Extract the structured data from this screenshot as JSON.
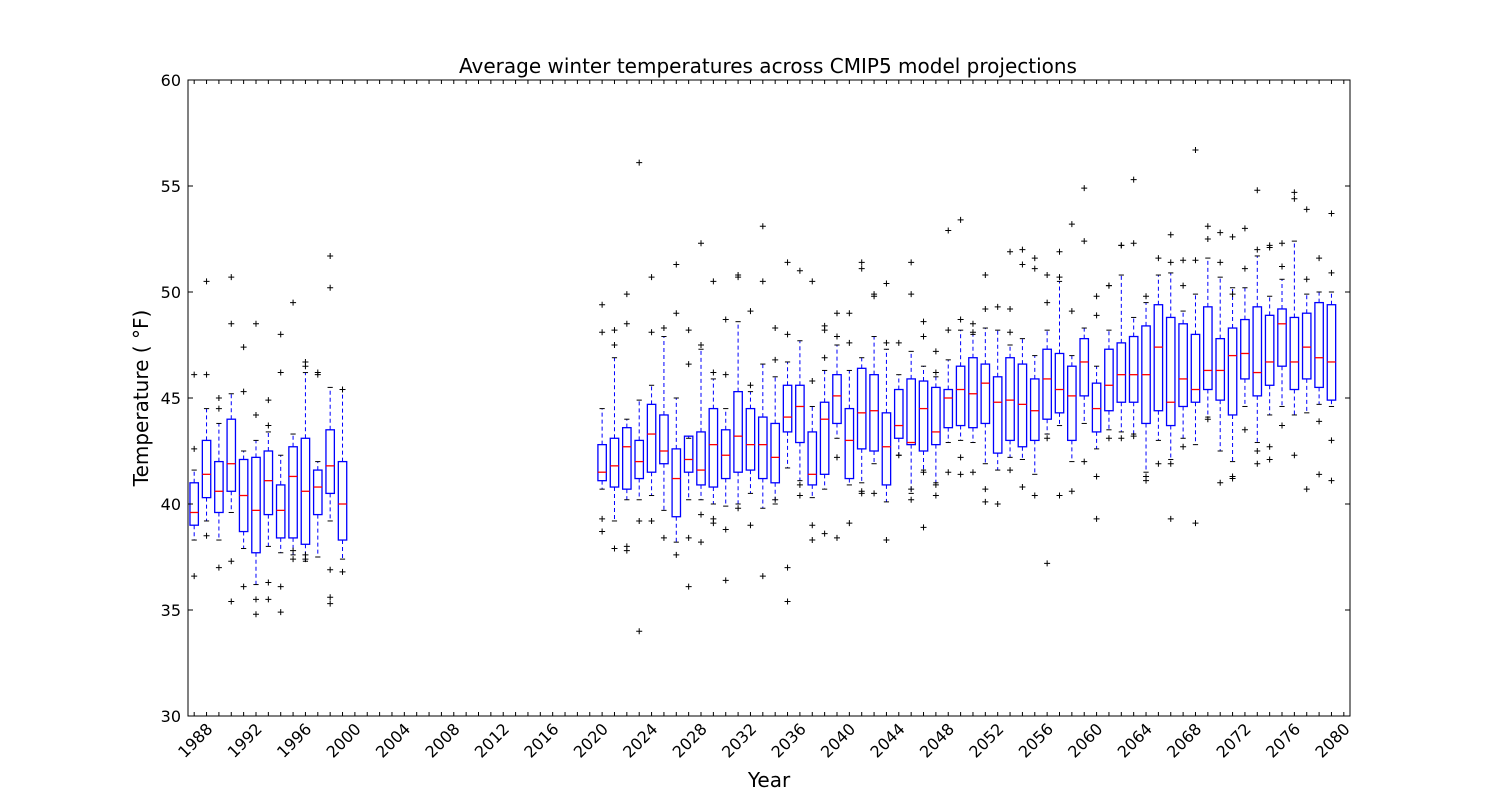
{
  "chart_data": {
    "type": "box",
    "title": "Average winter temperatures across CMIP5 model projections",
    "xlabel": "Year",
    "ylabel": "Temperature ( °F)",
    "ylim": [
      30,
      60
    ],
    "xlim": [
      1986.5,
      2080.5
    ],
    "yticks": [
      30,
      35,
      40,
      45,
      50,
      55,
      60
    ],
    "xticks": [
      1988,
      1992,
      1996,
      2000,
      2004,
      2008,
      2012,
      2016,
      2020,
      2024,
      2028,
      2032,
      2036,
      2040,
      2044,
      2048,
      2052,
      2056,
      2060,
      2064,
      2068,
      2072,
      2076,
      2080
    ],
    "grid": false,
    "colors": {
      "box": "#0000ff",
      "median": "#ff0000",
      "whisker": "#0000ff",
      "flier": "#000000",
      "axes": "#000000"
    },
    "boxes": [
      {
        "year": 1987,
        "q1": 39.0,
        "median": 39.6,
        "q3": 41.0,
        "wlo": 38.3,
        "whi": 41.6,
        "fliers": [
          36.6,
          42.6,
          46.1
        ]
      },
      {
        "year": 1988,
        "q1": 40.3,
        "median": 41.4,
        "q3": 43.0,
        "wlo": 39.2,
        "whi": 44.5,
        "fliers": [
          38.5,
          46.1,
          50.5
        ]
      },
      {
        "year": 1989,
        "q1": 39.6,
        "median": 40.6,
        "q3": 42.0,
        "wlo": 38.3,
        "whi": 43.8,
        "fliers": [
          37.0,
          44.5,
          45.0
        ]
      },
      {
        "year": 1990,
        "q1": 40.6,
        "median": 41.9,
        "q3": 44.0,
        "wlo": 39.6,
        "whi": 45.2,
        "fliers": [
          35.4,
          37.3,
          48.5,
          50.7
        ]
      },
      {
        "year": 1991,
        "q1": 38.7,
        "median": 40.4,
        "q3": 42.1,
        "wlo": 37.9,
        "whi": 42.5,
        "fliers": [
          36.1,
          45.3,
          47.4
        ]
      },
      {
        "year": 1992,
        "q1": 37.7,
        "median": 39.7,
        "q3": 42.2,
        "wlo": 36.2,
        "whi": 43.0,
        "fliers": [
          34.8,
          35.5,
          44.2,
          48.5
        ]
      },
      {
        "year": 1993,
        "q1": 39.5,
        "median": 41.1,
        "q3": 42.5,
        "wlo": 38.0,
        "whi": 43.4,
        "fliers": [
          35.5,
          36.3,
          43.7,
          44.9
        ]
      },
      {
        "year": 1994,
        "q1": 38.4,
        "median": 39.7,
        "q3": 40.9,
        "wlo": 37.7,
        "whi": 42.3,
        "fliers": [
          34.9,
          36.1,
          46.2,
          48.0
        ]
      },
      {
        "year": 1995,
        "q1": 38.4,
        "median": 41.3,
        "q3": 42.7,
        "wlo": 37.6,
        "whi": 43.3,
        "fliers": [
          37.4,
          37.8,
          49.5
        ]
      },
      {
        "year": 1996,
        "q1": 38.1,
        "median": 40.6,
        "q3": 43.1,
        "wlo": 37.3,
        "whi": 46.2,
        "fliers": [
          37.4,
          37.6,
          46.5,
          46.7
        ]
      },
      {
        "year": 1997,
        "q1": 39.5,
        "median": 40.8,
        "q3": 41.6,
        "wlo": 37.5,
        "whi": 42.0,
        "fliers": [
          46.1,
          46.2
        ]
      },
      {
        "year": 1998,
        "q1": 40.5,
        "median": 41.8,
        "q3": 43.5,
        "wlo": 39.2,
        "whi": 45.5,
        "fliers": [
          35.3,
          35.6,
          36.9,
          50.2,
          51.7
        ]
      },
      {
        "year": 1999,
        "q1": 38.3,
        "median": 40.0,
        "q3": 42.0,
        "wlo": 37.4,
        "whi": 45.4,
        "fliers": [
          36.8,
          45.4
        ]
      },
      {
        "year": 2020,
        "q1": 41.1,
        "median": 41.5,
        "q3": 42.8,
        "wlo": 40.7,
        "whi": 44.5,
        "fliers": [
          38.7,
          39.3,
          48.1,
          49.4
        ]
      },
      {
        "year": 2021,
        "q1": 40.8,
        "median": 41.8,
        "q3": 43.1,
        "wlo": 39.2,
        "whi": 46.9,
        "fliers": [
          37.9,
          47.5,
          48.2
        ]
      },
      {
        "year": 2022,
        "q1": 40.7,
        "median": 42.7,
        "q3": 43.6,
        "wlo": 40.2,
        "whi": 44.0,
        "fliers": [
          37.8,
          38.0,
          48.5,
          49.9
        ]
      },
      {
        "year": 2023,
        "q1": 41.2,
        "median": 42.0,
        "q3": 43.0,
        "wlo": 40.2,
        "whi": 44.9,
        "fliers": [
          34.0,
          39.2,
          56.1
        ]
      },
      {
        "year": 2024,
        "q1": 41.5,
        "median": 43.3,
        "q3": 44.7,
        "wlo": 40.4,
        "whi": 45.6,
        "fliers": [
          39.2,
          48.1,
          50.7
        ]
      },
      {
        "year": 2025,
        "q1": 41.9,
        "median": 42.5,
        "q3": 44.2,
        "wlo": 39.7,
        "whi": 47.9,
        "fliers": [
          38.4,
          48.3
        ]
      },
      {
        "year": 2026,
        "q1": 39.4,
        "median": 41.2,
        "q3": 42.6,
        "wlo": 38.2,
        "whi": 45.0,
        "fliers": [
          37.6,
          49.0,
          51.3
        ]
      },
      {
        "year": 2027,
        "q1": 41.5,
        "median": 42.1,
        "q3": 43.2,
        "wlo": 40.2,
        "whi": 43.1,
        "fliers": [
          36.1,
          38.4,
          46.6,
          48.2
        ]
      },
      {
        "year": 2028,
        "q1": 40.9,
        "median": 41.6,
        "q3": 43.4,
        "wlo": 40.2,
        "whi": 47.3,
        "fliers": [
          38.2,
          39.5,
          47.5,
          52.3
        ]
      },
      {
        "year": 2029,
        "q1": 40.8,
        "median": 42.8,
        "q3": 44.5,
        "wlo": 40.0,
        "whi": 45.9,
        "fliers": [
          39.1,
          39.3,
          46.2,
          50.5
        ]
      },
      {
        "year": 2030,
        "q1": 41.2,
        "median": 42.3,
        "q3": 43.5,
        "wlo": 39.9,
        "whi": 44.5,
        "fliers": [
          36.4,
          38.8,
          46.1,
          48.7
        ]
      },
      {
        "year": 2031,
        "q1": 41.5,
        "median": 43.2,
        "q3": 45.3,
        "wlo": 40.0,
        "whi": 48.6,
        "fliers": [
          39.8,
          50.7,
          50.8
        ]
      },
      {
        "year": 2032,
        "q1": 41.6,
        "median": 42.8,
        "q3": 44.5,
        "wlo": 40.5,
        "whi": 45.3,
        "fliers": [
          39.0,
          45.6,
          49.1
        ]
      },
      {
        "year": 2033,
        "q1": 41.2,
        "median": 42.8,
        "q3": 44.1,
        "wlo": 39.8,
        "whi": 46.6,
        "fliers": [
          36.6,
          50.5,
          53.1
        ]
      },
      {
        "year": 2034,
        "q1": 41.0,
        "median": 42.2,
        "q3": 43.8,
        "wlo": 40.0,
        "whi": 46.0,
        "fliers": [
          40.2,
          46.8,
          48.3
        ]
      },
      {
        "year": 2035,
        "q1": 43.4,
        "median": 44.1,
        "q3": 45.6,
        "wlo": 41.7,
        "whi": 46.7,
        "fliers": [
          35.4,
          37.0,
          48.0,
          51.4
        ]
      },
      {
        "year": 2036,
        "q1": 42.9,
        "median": 44.6,
        "q3": 45.6,
        "wlo": 41.1,
        "whi": 47.7,
        "fliers": [
          40.4,
          40.9,
          51.0
        ]
      },
      {
        "year": 2037,
        "q1": 40.9,
        "median": 41.4,
        "q3": 43.4,
        "wlo": 40.3,
        "whi": 44.6,
        "fliers": [
          38.3,
          39.0,
          45.8,
          50.5
        ]
      },
      {
        "year": 2038,
        "q1": 41.4,
        "median": 44.0,
        "q3": 44.8,
        "wlo": 40.7,
        "whi": 46.3,
        "fliers": [
          38.6,
          46.9,
          48.2,
          48.4
        ]
      },
      {
        "year": 2039,
        "q1": 43.8,
        "median": 45.1,
        "q3": 46.1,
        "wlo": 43.1,
        "whi": 47.5,
        "fliers": [
          38.4,
          42.2,
          47.9,
          49.0
        ]
      },
      {
        "year": 2040,
        "q1": 41.2,
        "median": 43.0,
        "q3": 44.5,
        "wlo": 40.9,
        "whi": 46.3,
        "fliers": [
          39.1,
          47.6,
          49.0
        ]
      },
      {
        "year": 2041,
        "q1": 42.6,
        "median": 44.3,
        "q3": 46.4,
        "wlo": 41.0,
        "whi": 46.9,
        "fliers": [
          40.5,
          40.6,
          51.1,
          51.4
        ]
      },
      {
        "year": 2042,
        "q1": 42.5,
        "median": 44.4,
        "q3": 46.1,
        "wlo": 41.9,
        "whi": 47.9,
        "fliers": [
          40.5,
          49.8,
          49.9
        ]
      },
      {
        "year": 2043,
        "q1": 40.9,
        "median": 42.7,
        "q3": 44.3,
        "wlo": 40.1,
        "whi": 47.3,
        "fliers": [
          38.3,
          47.6,
          50.4
        ]
      },
      {
        "year": 2044,
        "q1": 43.1,
        "median": 43.7,
        "q3": 45.4,
        "wlo": 42.3,
        "whi": 46.1,
        "fliers": [
          42.3,
          47.6
        ]
      },
      {
        "year": 2045,
        "q1": 42.8,
        "median": 42.9,
        "q3": 45.9,
        "wlo": 40.5,
        "whi": 47.2,
        "fliers": [
          40.2,
          40.7,
          49.9,
          51.4
        ]
      },
      {
        "year": 2046,
        "q1": 42.5,
        "median": 44.5,
        "q3": 45.8,
        "wlo": 41.6,
        "whi": 46.5,
        "fliers": [
          38.9,
          41.5,
          47.9,
          48.6
        ]
      },
      {
        "year": 2047,
        "q1": 42.8,
        "median": 43.4,
        "q3": 45.5,
        "wlo": 41.0,
        "whi": 46.0,
        "fliers": [
          40.4,
          40.9,
          46.2,
          47.2
        ]
      },
      {
        "year": 2048,
        "q1": 43.6,
        "median": 45.0,
        "q3": 45.4,
        "wlo": 42.9,
        "whi": 46.8,
        "fliers": [
          41.5,
          48.2,
          52.9
        ]
      },
      {
        "year": 2049,
        "q1": 43.7,
        "median": 45.4,
        "q3": 46.5,
        "wlo": 43.0,
        "whi": 48.2,
        "fliers": [
          41.4,
          42.2,
          48.7,
          53.4
        ]
      },
      {
        "year": 2050,
        "q1": 43.6,
        "median": 45.2,
        "q3": 46.9,
        "wlo": 42.9,
        "whi": 48.0,
        "fliers": [
          41.5,
          48.1,
          48.5
        ]
      },
      {
        "year": 2051,
        "q1": 43.8,
        "median": 45.7,
        "q3": 46.6,
        "wlo": 41.9,
        "whi": 48.3,
        "fliers": [
          40.1,
          40.7,
          49.2,
          50.8
        ]
      },
      {
        "year": 2052,
        "q1": 42.4,
        "median": 44.8,
        "q3": 46.0,
        "wlo": 41.6,
        "whi": 48.2,
        "fliers": [
          40.0,
          49.3
        ]
      },
      {
        "year": 2053,
        "q1": 43.0,
        "median": 44.9,
        "q3": 46.9,
        "wlo": 42.2,
        "whi": 47.5,
        "fliers": [
          41.6,
          48.1,
          49.2,
          51.9
        ]
      },
      {
        "year": 2054,
        "q1": 42.7,
        "median": 44.7,
        "q3": 46.6,
        "wlo": 42.1,
        "whi": 47.8,
        "fliers": [
          40.8,
          51.3,
          52.0
        ]
      },
      {
        "year": 2055,
        "q1": 43.0,
        "median": 44.4,
        "q3": 45.9,
        "wlo": 41.4,
        "whi": 47.0,
        "fliers": [
          40.4,
          51.1,
          51.6
        ]
      },
      {
        "year": 2056,
        "q1": 44.0,
        "median": 45.9,
        "q3": 47.3,
        "wlo": 43.3,
        "whi": 48.2,
        "fliers": [
          37.2,
          43.1,
          49.5,
          50.8
        ]
      },
      {
        "year": 2057,
        "q1": 44.3,
        "median": 45.4,
        "q3": 47.1,
        "wlo": 43.7,
        "whi": 50.5,
        "fliers": [
          40.4,
          50.7,
          51.9
        ]
      },
      {
        "year": 2058,
        "q1": 43.0,
        "median": 45.1,
        "q3": 46.5,
        "wlo": 42.0,
        "whi": 47.0,
        "fliers": [
          40.6,
          49.1,
          53.2
        ]
      },
      {
        "year": 2059,
        "q1": 45.1,
        "median": 46.7,
        "q3": 47.8,
        "wlo": 43.8,
        "whi": 48.3,
        "fliers": [
          42.0,
          52.4,
          54.9
        ]
      },
      {
        "year": 2060,
        "q1": 43.4,
        "median": 44.5,
        "q3": 45.7,
        "wlo": 42.6,
        "whi": 46.5,
        "fliers": [
          39.3,
          41.3,
          48.9,
          49.8
        ]
      },
      {
        "year": 2061,
        "q1": 44.4,
        "median": 45.6,
        "q3": 47.3,
        "wlo": 43.5,
        "whi": 48.2,
        "fliers": [
          43.1,
          50.3,
          50.3
        ]
      },
      {
        "year": 2062,
        "q1": 44.8,
        "median": 46.1,
        "q3": 47.6,
        "wlo": 43.4,
        "whi": 50.8,
        "fliers": [
          43.1,
          52.2,
          52.2
        ]
      },
      {
        "year": 2063,
        "q1": 44.8,
        "median": 46.1,
        "q3": 47.9,
        "wlo": 43.3,
        "whi": 48.8,
        "fliers": [
          43.2,
          52.3,
          55.3
        ]
      },
      {
        "year": 2064,
        "q1": 43.8,
        "median": 46.1,
        "q3": 48.4,
        "wlo": 41.5,
        "whi": 49.5,
        "fliers": [
          41.1,
          41.3,
          49.8
        ]
      },
      {
        "year": 2065,
        "q1": 44.4,
        "median": 47.4,
        "q3": 49.4,
        "wlo": 43.0,
        "whi": 50.8,
        "fliers": [
          41.9,
          51.6
        ]
      },
      {
        "year": 2066,
        "q1": 43.7,
        "median": 44.8,
        "q3": 48.8,
        "wlo": 42.1,
        "whi": 50.9,
        "fliers": [
          39.3,
          41.9,
          51.4,
          52.7
        ]
      },
      {
        "year": 2067,
        "q1": 44.6,
        "median": 45.9,
        "q3": 48.5,
        "wlo": 43.1,
        "whi": 49.1,
        "fliers": [
          42.7,
          50.3,
          51.5
        ]
      },
      {
        "year": 2068,
        "q1": 44.8,
        "median": 45.4,
        "q3": 48.0,
        "wlo": 42.8,
        "whi": 49.9,
        "fliers": [
          39.1,
          51.5,
          56.7
        ]
      },
      {
        "year": 2069,
        "q1": 45.4,
        "median": 46.3,
        "q3": 49.3,
        "wlo": 44.1,
        "whi": 51.6,
        "fliers": [
          44.0,
          52.5,
          53.1
        ]
      },
      {
        "year": 2070,
        "q1": 44.9,
        "median": 46.3,
        "q3": 47.8,
        "wlo": 42.5,
        "whi": 50.7,
        "fliers": [
          41.0,
          51.4,
          52.8
        ]
      },
      {
        "year": 2071,
        "q1": 44.2,
        "median": 47.0,
        "q3": 48.3,
        "wlo": 42.0,
        "whi": 50.2,
        "fliers": [
          41.2,
          41.3,
          49.9,
          52.6
        ]
      },
      {
        "year": 2072,
        "q1": 45.9,
        "median": 47.1,
        "q3": 48.7,
        "wlo": 44.6,
        "whi": 50.2,
        "fliers": [
          43.5,
          51.1,
          53.0
        ]
      },
      {
        "year": 2073,
        "q1": 45.1,
        "median": 46.2,
        "q3": 49.3,
        "wlo": 42.9,
        "whi": 51.7,
        "fliers": [
          41.9,
          42.5,
          52.0,
          54.8
        ]
      },
      {
        "year": 2074,
        "q1": 45.6,
        "median": 46.7,
        "q3": 48.9,
        "wlo": 44.2,
        "whi": 49.8,
        "fliers": [
          42.1,
          42.7,
          52.1,
          52.2
        ]
      },
      {
        "year": 2075,
        "q1": 46.5,
        "median": 48.5,
        "q3": 49.2,
        "wlo": 44.6,
        "whi": 50.6,
        "fliers": [
          43.7,
          51.2,
          52.3
        ]
      },
      {
        "year": 2076,
        "q1": 45.4,
        "median": 46.7,
        "q3": 48.8,
        "wlo": 44.2,
        "whi": 52.4,
        "fliers": [
          42.3,
          54.4,
          54.7
        ]
      },
      {
        "year": 2077,
        "q1": 45.9,
        "median": 47.4,
        "q3": 49.0,
        "wlo": 44.3,
        "whi": 49.9,
        "fliers": [
          40.7,
          50.6,
          53.9
        ]
      },
      {
        "year": 2078,
        "q1": 45.5,
        "median": 46.9,
        "q3": 49.5,
        "wlo": 44.7,
        "whi": 50.0,
        "fliers": [
          41.4,
          43.9,
          51.6
        ]
      },
      {
        "year": 2079,
        "q1": 44.9,
        "median": 46.7,
        "q3": 49.4,
        "wlo": 44.6,
        "whi": 50.0,
        "fliers": [
          41.1,
          43.0,
          50.9,
          53.7
        ]
      }
    ]
  }
}
